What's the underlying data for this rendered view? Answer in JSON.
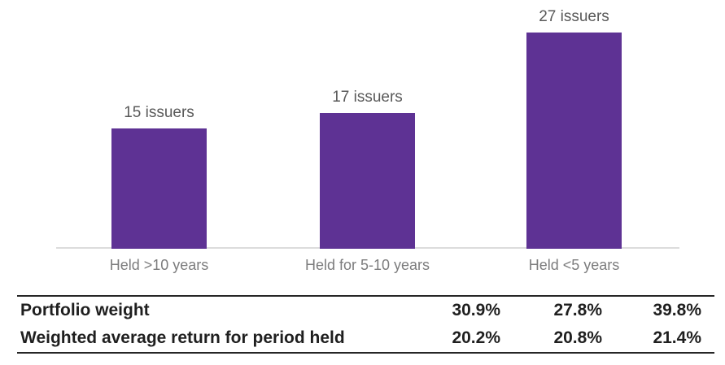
{
  "chart_data": {
    "type": "bar",
    "title": "",
    "xlabel": "",
    "ylabel": "",
    "categories": [
      "Held >10 years",
      "Held for 5-10 years",
      "Held <5 years"
    ],
    "values": [
      15,
      17,
      27
    ],
    "bar_labels": [
      "15 issuers",
      "17 issuers",
      "27 issuers"
    ],
    "ylim": [
      0,
      28
    ],
    "grid": false,
    "legend_position": "none",
    "colors": {
      "bar_fill": "#5E3294",
      "bar_value_label_text": "#595959",
      "x_axis_label_text": "#7C7C7D",
      "axis_line": "#DCDCDC",
      "table_text": "#1F1F1F",
      "table_border": "#262626"
    },
    "table": {
      "rows": [
        {
          "label": "Portfolio weight",
          "values": [
            "30.9%",
            "27.8%",
            "39.8%"
          ]
        },
        {
          "label": "Weighted average return for period held",
          "values": [
            "20.2%",
            "20.8%",
            "21.4%"
          ]
        }
      ]
    }
  }
}
